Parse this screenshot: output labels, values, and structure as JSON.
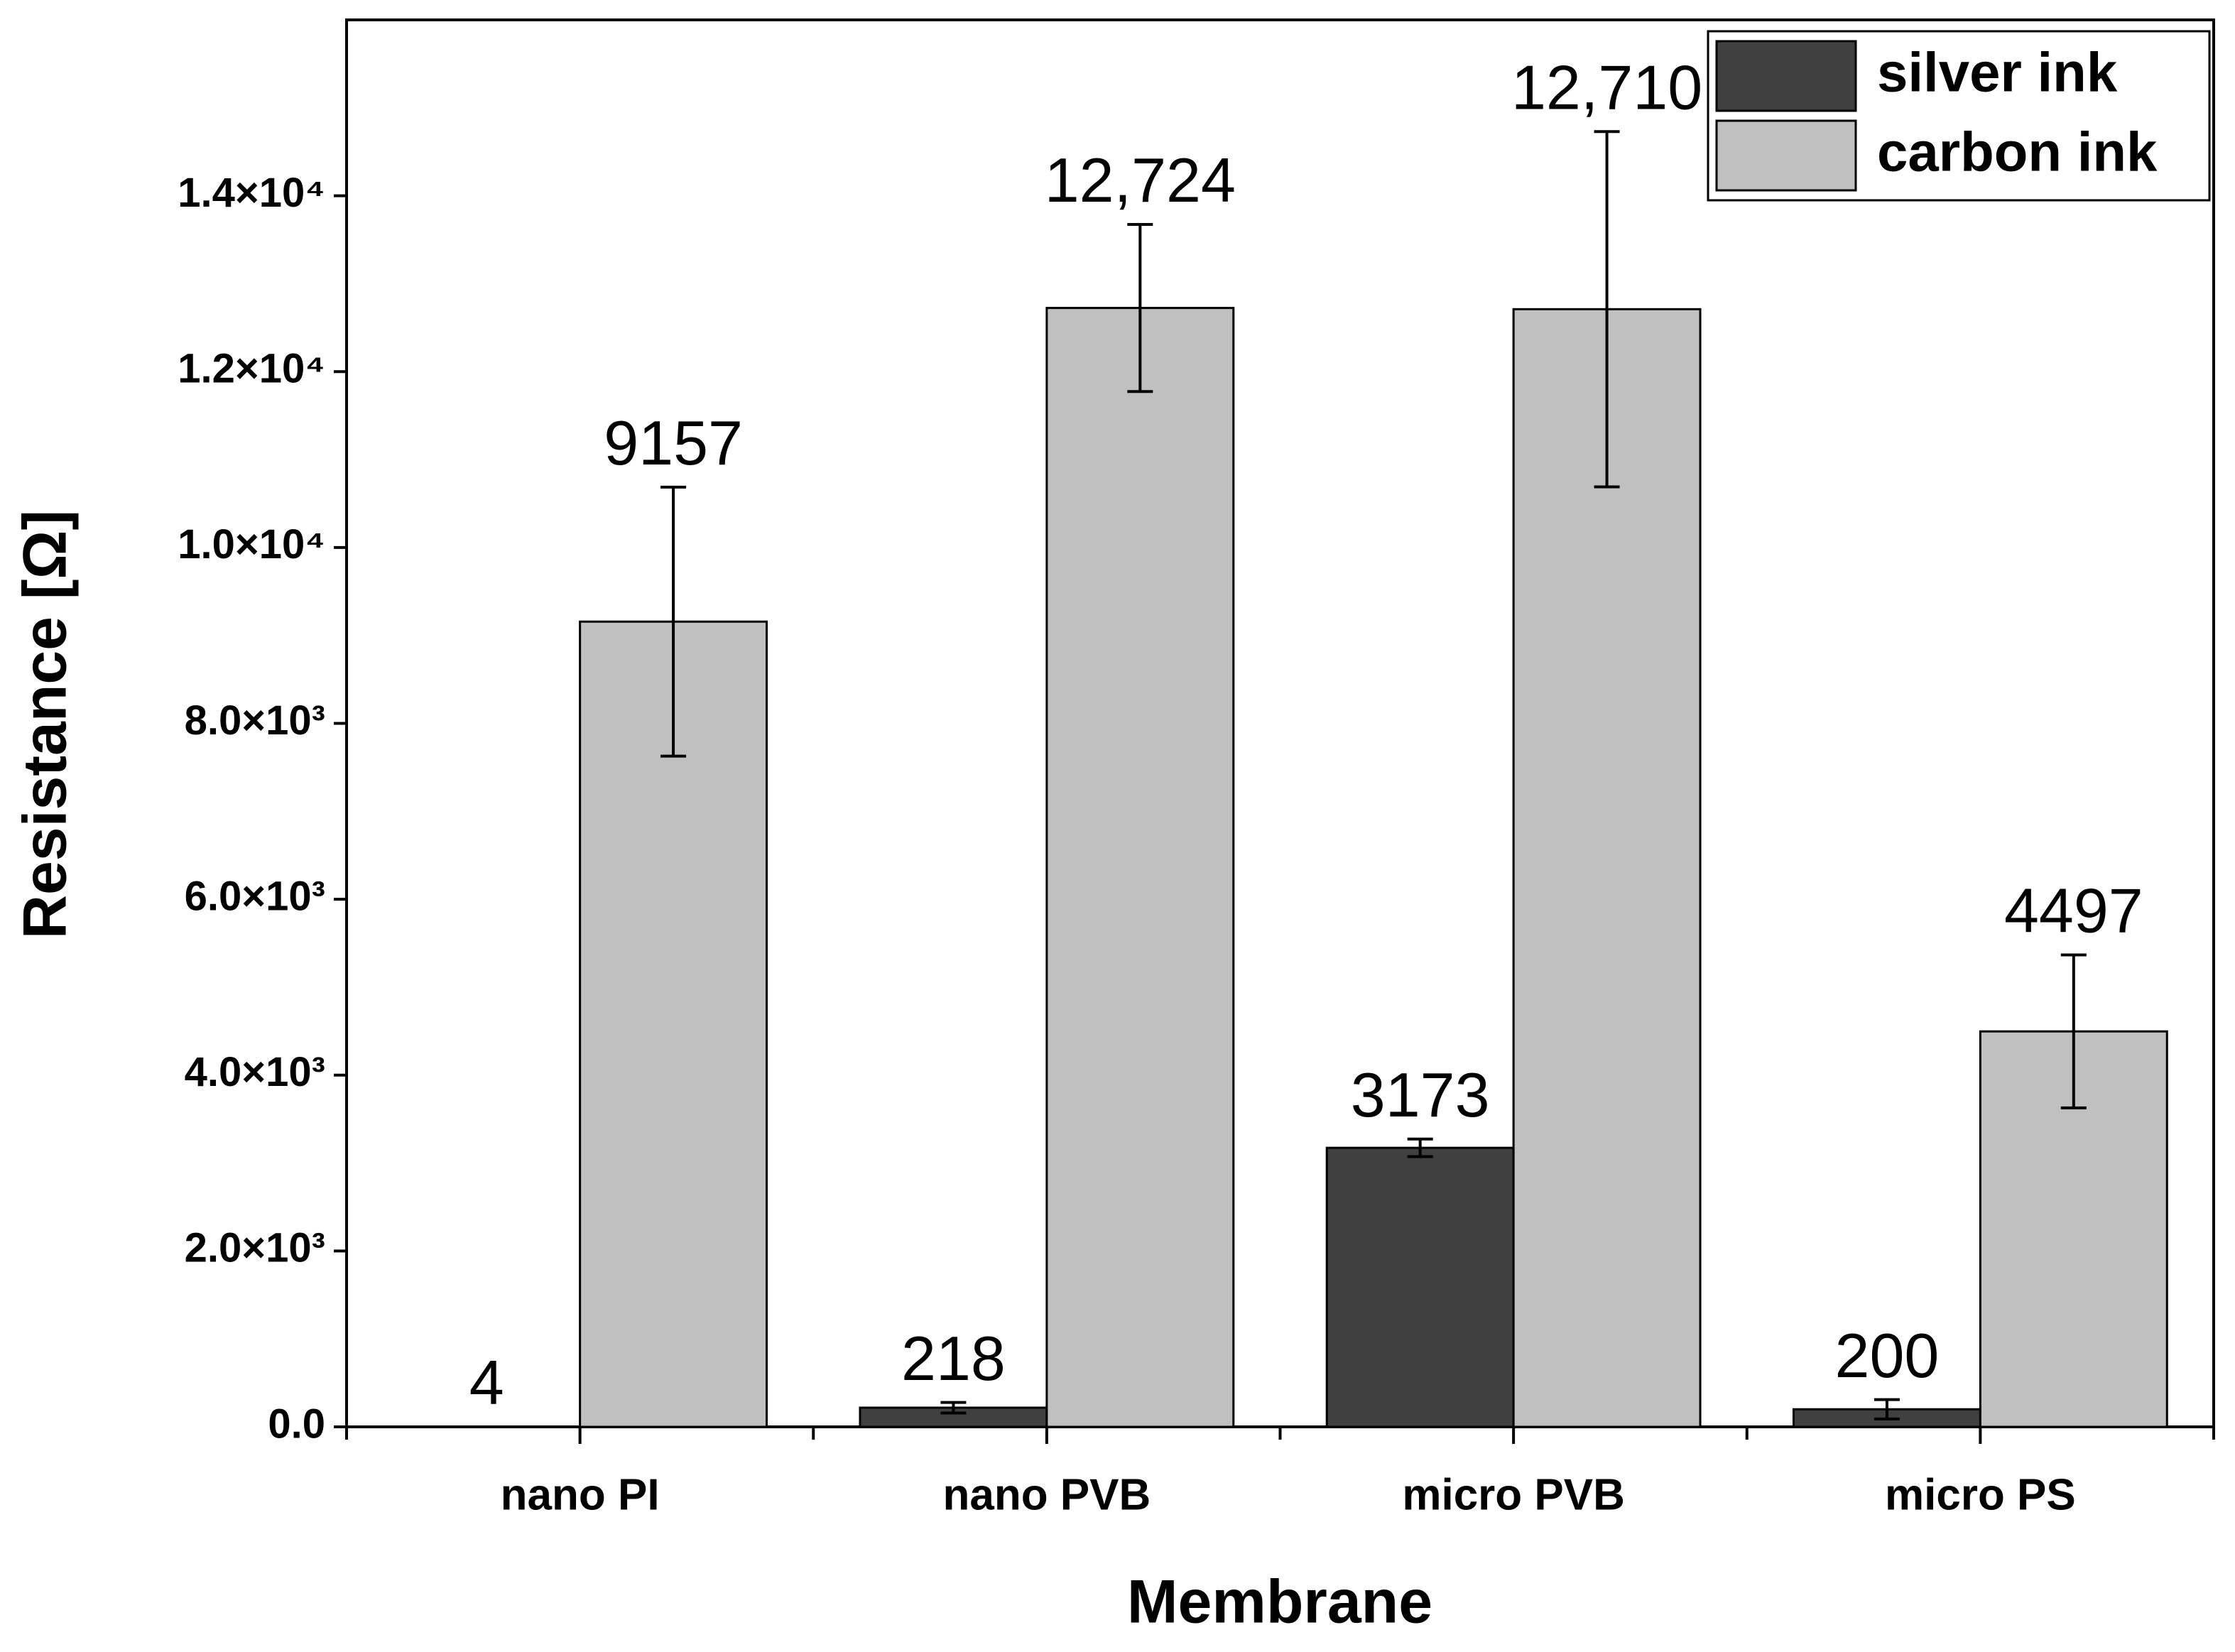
{
  "chart_data": {
    "type": "bar",
    "x_label": "Membrane",
    "y_label": "Resistance [Ω]",
    "categories": [
      "nano PI",
      "nano PVB",
      "micro PVB",
      "micro PS"
    ],
    "series": [
      {
        "name": "silver ink",
        "color": "#404040",
        "values": [
          4,
          218,
          3173,
          200
        ],
        "value_labels": [
          "4",
          "218",
          "3173",
          "200"
        ],
        "errors": [
          null,
          60,
          100,
          110
        ]
      },
      {
        "name": "carbon ink",
        "color": "#c0c0c0",
        "values": [
          9157,
          12724,
          12710,
          4497
        ],
        "value_labels": [
          "9157",
          "12,724",
          "12,710",
          "4497"
        ],
        "errors": [
          1530,
          950,
          2020,
          870
        ]
      }
    ],
    "ylim": [
      0,
      16000
    ],
    "yticks": [
      {
        "value": 0,
        "label": "0.0"
      },
      {
        "value": 2000,
        "label": "2.0×10³"
      },
      {
        "value": 4000,
        "label": "4.0×10³"
      },
      {
        "value": 6000,
        "label": "6.0×10³"
      },
      {
        "value": 8000,
        "label": "8.0×10³"
      },
      {
        "value": 10000,
        "label": "1.0×10⁴"
      },
      {
        "value": 12000,
        "label": "1.2×10⁴"
      },
      {
        "value": 14000,
        "label": "1.4×10⁴"
      }
    ],
    "legend": "top-right"
  }
}
